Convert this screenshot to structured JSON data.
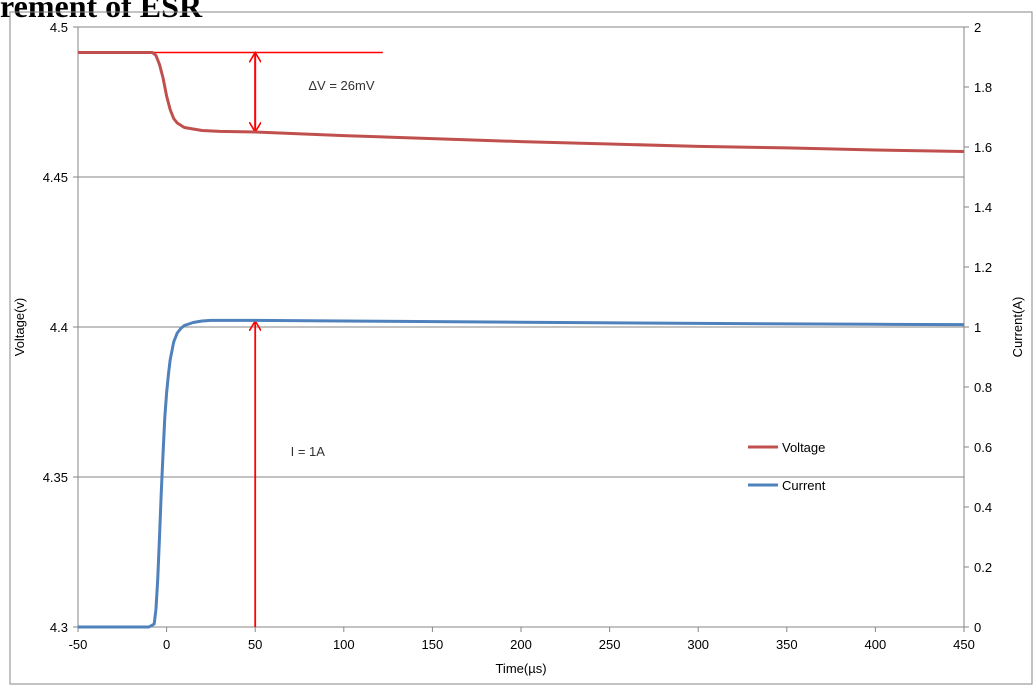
{
  "heading": "rement of ESR",
  "chart_data": {
    "type": "line",
    "xlabel": "Time(µs)",
    "ylabel": "Voltage(v)",
    "y2label": "Current(A)",
    "xlim": [
      -50,
      450
    ],
    "ylim": [
      4.3,
      4.5
    ],
    "y2lim": [
      0,
      2
    ],
    "x_ticks": [
      "-50",
      "0",
      "50",
      "100",
      "150",
      "200",
      "250",
      "300",
      "350",
      "400",
      "450"
    ],
    "y_ticks": [
      "4.3",
      "4.35",
      "4.4",
      "4.45",
      "4.5"
    ],
    "y2_ticks": [
      "0",
      "0.2",
      "0.4",
      "0.6",
      "0.8",
      "1",
      "1.2",
      "1.4",
      "1.6",
      "1.8",
      "2"
    ],
    "grid": "horizontal major gridlines (left axis)",
    "legend_position": "right-center",
    "series": [
      {
        "name": "Voltage",
        "axis": "left",
        "color": "#c0504d",
        "x": [
          -50,
          -20,
          -8,
          -6,
          -4,
          -2,
          0,
          2,
          4,
          6,
          10,
          15,
          20,
          30,
          50,
          100,
          150,
          200,
          250,
          300,
          350,
          400,
          450
        ],
        "y": [
          4.4915,
          4.4915,
          4.4915,
          4.4905,
          4.4875,
          4.483,
          4.477,
          4.4725,
          4.4695,
          4.468,
          4.4665,
          4.466,
          4.4655,
          4.4652,
          4.465,
          4.4638,
          4.4628,
          4.4618,
          4.461,
          4.4602,
          4.4597,
          4.459,
          4.4585
        ]
      },
      {
        "name": "Current",
        "axis": "right",
        "color": "#4f81bd",
        "x": [
          -50,
          -10,
          -7,
          -6,
          -5,
          -4,
          -3,
          -2,
          -1,
          0,
          1,
          2,
          4,
          6,
          8,
          10,
          15,
          20,
          25,
          50,
          100,
          200,
          300,
          400,
          450
        ],
        "y": [
          0.0,
          0.0,
          0.01,
          0.06,
          0.16,
          0.3,
          0.45,
          0.58,
          0.7,
          0.78,
          0.84,
          0.89,
          0.95,
          0.98,
          0.995,
          1.005,
          1.015,
          1.02,
          1.022,
          1.022,
          1.02,
          1.016,
          1.012,
          1.009,
          1.008
        ]
      }
    ],
    "annotations": [
      {
        "text": "ΔV = 26mV",
        "x": 80,
        "y": 4.479,
        "color": "#333333"
      },
      {
        "text": "I = 1A",
        "x": 70,
        "y": 4.357,
        "color": "#333333"
      }
    ],
    "reference_line": {
      "x": [
        -8,
        122
      ],
      "y": 4.4915,
      "color": "#ff0000"
    },
    "arrows": [
      {
        "x": 50,
        "y_from": 4.4915,
        "y_to": 4.465,
        "axis": "left",
        "heads": "both",
        "color": "#ff0000"
      },
      {
        "x": 50,
        "y_from": 0,
        "y_to": 1.02,
        "axis": "right",
        "heads": "end",
        "color": "#ff0000"
      }
    ]
  }
}
